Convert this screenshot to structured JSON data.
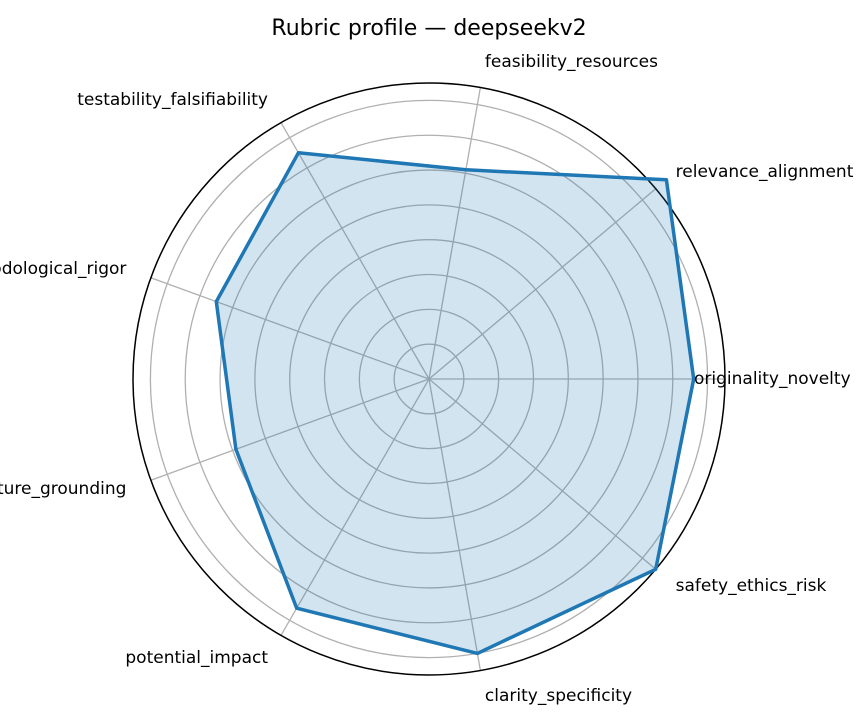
{
  "chart_data": {
    "type": "radar",
    "title": "Rubric profile — deepseekv2",
    "categories": [
      "originality_novelty",
      "relevance_alignment",
      "feasibility_resources",
      "testability_falsifiability",
      "methodological_rigor",
      "literature_grounding",
      "potential_impact",
      "clarity_specificity",
      "safety_ethics_risk"
    ],
    "series": [
      {
        "values": [
          7.6,
          8.9,
          6.1,
          7.5,
          6.5,
          5.9,
          7.6,
          8.0,
          8.5
        ]
      }
    ],
    "rlim": [
      0,
      8.5
    ],
    "rgrid": [
      1,
      2,
      3,
      4,
      5,
      6,
      7,
      8
    ],
    "grid": true,
    "colors": {
      "line": "#1f77b4",
      "fill": "#1f77b4",
      "grid": "#b0b0b0",
      "frame": "#000000"
    }
  }
}
